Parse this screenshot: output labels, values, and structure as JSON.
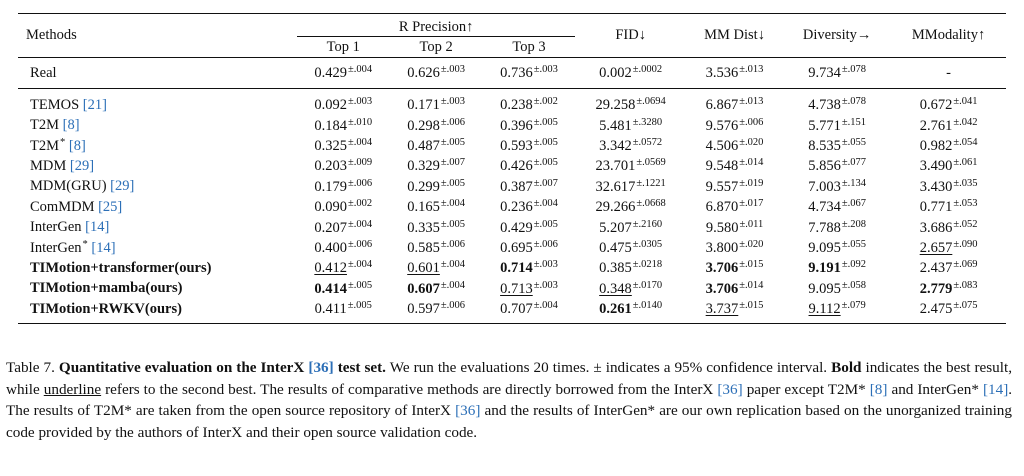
{
  "table": {
    "header": {
      "methods": "Methods",
      "r_precision": "R Precision↑",
      "top1": "Top 1",
      "top2": "Top 2",
      "top3": "Top 3",
      "fid": "FID↓",
      "mm_dist": "MM Dist↓",
      "diversity": "Diversity→",
      "mmodality": "MModality↑"
    },
    "rows": [
      {
        "name": "Real",
        "ref": "",
        "star": "",
        "bold_name": false,
        "cells": [
          {
            "v": "0.429",
            "pm": "±.004"
          },
          {
            "v": "0.626",
            "pm": "±.003"
          },
          {
            "v": "0.736",
            "pm": "±.003"
          },
          {
            "v": "0.002",
            "pm": "±.0002"
          },
          {
            "v": "3.536",
            "pm": "±.013"
          },
          {
            "v": "9.734",
            "pm": "±.078"
          },
          {
            "v": "-",
            "pm": ""
          }
        ]
      },
      {
        "name": "TEMOS",
        "ref": "[21]",
        "star": "",
        "bold_name": false,
        "cells": [
          {
            "v": "0.092",
            "pm": "±.003"
          },
          {
            "v": "0.171",
            "pm": "±.003"
          },
          {
            "v": "0.238",
            "pm": "±.002"
          },
          {
            "v": "29.258",
            "pm": "±.0694"
          },
          {
            "v": "6.867",
            "pm": "±.013"
          },
          {
            "v": "4.738",
            "pm": "±.078"
          },
          {
            "v": "0.672",
            "pm": "±.041"
          }
        ]
      },
      {
        "name": "T2M",
        "ref": "[8]",
        "star": "",
        "bold_name": false,
        "cells": [
          {
            "v": "0.184",
            "pm": "±.010"
          },
          {
            "v": "0.298",
            "pm": "±.006"
          },
          {
            "v": "0.396",
            "pm": "±.005"
          },
          {
            "v": "5.481",
            "pm": "±.3280"
          },
          {
            "v": "9.576",
            "pm": "±.006"
          },
          {
            "v": "5.771",
            "pm": "±.151"
          },
          {
            "v": "2.761",
            "pm": "±.042"
          }
        ]
      },
      {
        "name": "T2M",
        "ref": "[8]",
        "star": "*",
        "bold_name": false,
        "cells": [
          {
            "v": "0.325",
            "pm": "±.004"
          },
          {
            "v": "0.487",
            "pm": "±.005"
          },
          {
            "v": "0.593",
            "pm": "±.005"
          },
          {
            "v": "3.342",
            "pm": "±.0572"
          },
          {
            "v": "4.506",
            "pm": "±.020"
          },
          {
            "v": "8.535",
            "pm": "±.055"
          },
          {
            "v": "0.982",
            "pm": "±.054"
          }
        ]
      },
      {
        "name": "MDM",
        "ref": "[29]",
        "star": "",
        "bold_name": false,
        "cells": [
          {
            "v": "0.203",
            "pm": "±.009"
          },
          {
            "v": "0.329",
            "pm": "±.007"
          },
          {
            "v": "0.426",
            "pm": "±.005"
          },
          {
            "v": "23.701",
            "pm": "±.0569"
          },
          {
            "v": "9.548",
            "pm": "±.014"
          },
          {
            "v": "5.856",
            "pm": "±.077"
          },
          {
            "v": "3.490",
            "pm": "±.061"
          }
        ]
      },
      {
        "name": "MDM(GRU)",
        "ref": "[29]",
        "star": "",
        "bold_name": false,
        "cells": [
          {
            "v": "0.179",
            "pm": "±.006"
          },
          {
            "v": "0.299",
            "pm": "±.005"
          },
          {
            "v": "0.387",
            "pm": "±.007"
          },
          {
            "v": "32.617",
            "pm": "±.1221"
          },
          {
            "v": "9.557",
            "pm": "±.019"
          },
          {
            "v": "7.003",
            "pm": "±.134"
          },
          {
            "v": "3.430",
            "pm": "±.035"
          }
        ]
      },
      {
        "name": "ComMDM",
        "ref": "[25]",
        "star": "",
        "bold_name": false,
        "cells": [
          {
            "v": "0.090",
            "pm": "±.002"
          },
          {
            "v": "0.165",
            "pm": "±.004"
          },
          {
            "v": "0.236",
            "pm": "±.004"
          },
          {
            "v": "29.266",
            "pm": "±.0668"
          },
          {
            "v": "6.870",
            "pm": "±.017"
          },
          {
            "v": "4.734",
            "pm": "±.067"
          },
          {
            "v": "0.771",
            "pm": "±.053"
          }
        ]
      },
      {
        "name": "InterGen",
        "ref": "[14]",
        "star": "",
        "bold_name": false,
        "cells": [
          {
            "v": "0.207",
            "pm": "±.004"
          },
          {
            "v": "0.335",
            "pm": "±.005"
          },
          {
            "v": "0.429",
            "pm": "±.005"
          },
          {
            "v": "5.207",
            "pm": "±.2160"
          },
          {
            "v": "9.580",
            "pm": "±.011"
          },
          {
            "v": "7.788",
            "pm": "±.208"
          },
          {
            "v": "3.686",
            "pm": "±.052"
          }
        ]
      },
      {
        "name": "InterGen",
        "ref": "[14]",
        "star": "*",
        "bold_name": false,
        "cells": [
          {
            "v": "0.400",
            "pm": "±.006"
          },
          {
            "v": "0.585",
            "pm": "±.006"
          },
          {
            "v": "0.695",
            "pm": "±.006"
          },
          {
            "v": "0.475",
            "pm": "±.0305"
          },
          {
            "v": "3.800",
            "pm": "±.020"
          },
          {
            "v": "9.095",
            "pm": "±.055"
          },
          {
            "v": "2.657",
            "pm": "±.090",
            "u": true
          }
        ]
      },
      {
        "name": "TIMotion+transformer(ours)",
        "ref": "",
        "star": "",
        "bold_name": true,
        "cells": [
          {
            "v": "0.412",
            "pm": "±.004",
            "u": true
          },
          {
            "v": "0.601",
            "pm": "±.004",
            "u": true
          },
          {
            "v": "0.714",
            "pm": "±.003",
            "b": true
          },
          {
            "v": "0.385",
            "pm": "±.0218"
          },
          {
            "v": "3.706",
            "pm": "±.015",
            "b": true
          },
          {
            "v": "9.191",
            "pm": "±.092",
            "b": true
          },
          {
            "v": "2.437",
            "pm": "±.069"
          }
        ]
      },
      {
        "name": "TIMotion+mamba(ours)",
        "ref": "",
        "star": "",
        "bold_name": true,
        "cells": [
          {
            "v": "0.414",
            "pm": "±.005",
            "b": true
          },
          {
            "v": "0.607",
            "pm": "±.004",
            "b": true
          },
          {
            "v": "0.713",
            "pm": "±.003",
            "u": true
          },
          {
            "v": "0.348",
            "pm": "±.0170",
            "u": true
          },
          {
            "v": "3.706",
            "pm": "±.014",
            "b": true
          },
          {
            "v": "9.095",
            "pm": "±.058"
          },
          {
            "v": "2.779",
            "pm": "±.083",
            "b": true
          }
        ]
      },
      {
        "name": "TIMotion+RWKV(ours)",
        "ref": "",
        "star": "",
        "bold_name": true,
        "cells": [
          {
            "v": "0.411",
            "pm": "±.005"
          },
          {
            "v": "0.597",
            "pm": "±.006"
          },
          {
            "v": "0.707",
            "pm": "±.004"
          },
          {
            "v": "0.261",
            "pm": "±.0140",
            "b": true
          },
          {
            "v": "3.737",
            "pm": "±.015",
            "u": true
          },
          {
            "v": "9.112",
            "pm": "±.079",
            "u": true
          },
          {
            "v": "2.475",
            "pm": "±.075"
          }
        ]
      }
    ]
  },
  "caption": {
    "label": "Table 7.",
    "title_a": "Quantitative evaluation on the InterX",
    "title_ref": "[36]",
    "title_b": "test set.",
    "s1": "We run the evaluations 20 times. ± indicates a 95% confidence interval.",
    "bold_word": "Bold",
    "s2": "indicates the best result, while",
    "underline_word": "underline",
    "s3": "refers to the second best. The results of comparative methods are directly borrowed from the InterX",
    "ref36": "[36]",
    "s4": "paper except T2M*",
    "ref8": "[8]",
    "s5": "and InterGen*",
    "ref14": "[14]",
    "s6": ". The results of T2M* are taken from the open source repository of InterX",
    "ref36b": "[36]",
    "s7": "and the results of InterGen* are our own replication based on the unorganized training code provided by the authors of InterX and their open source validation code."
  }
}
